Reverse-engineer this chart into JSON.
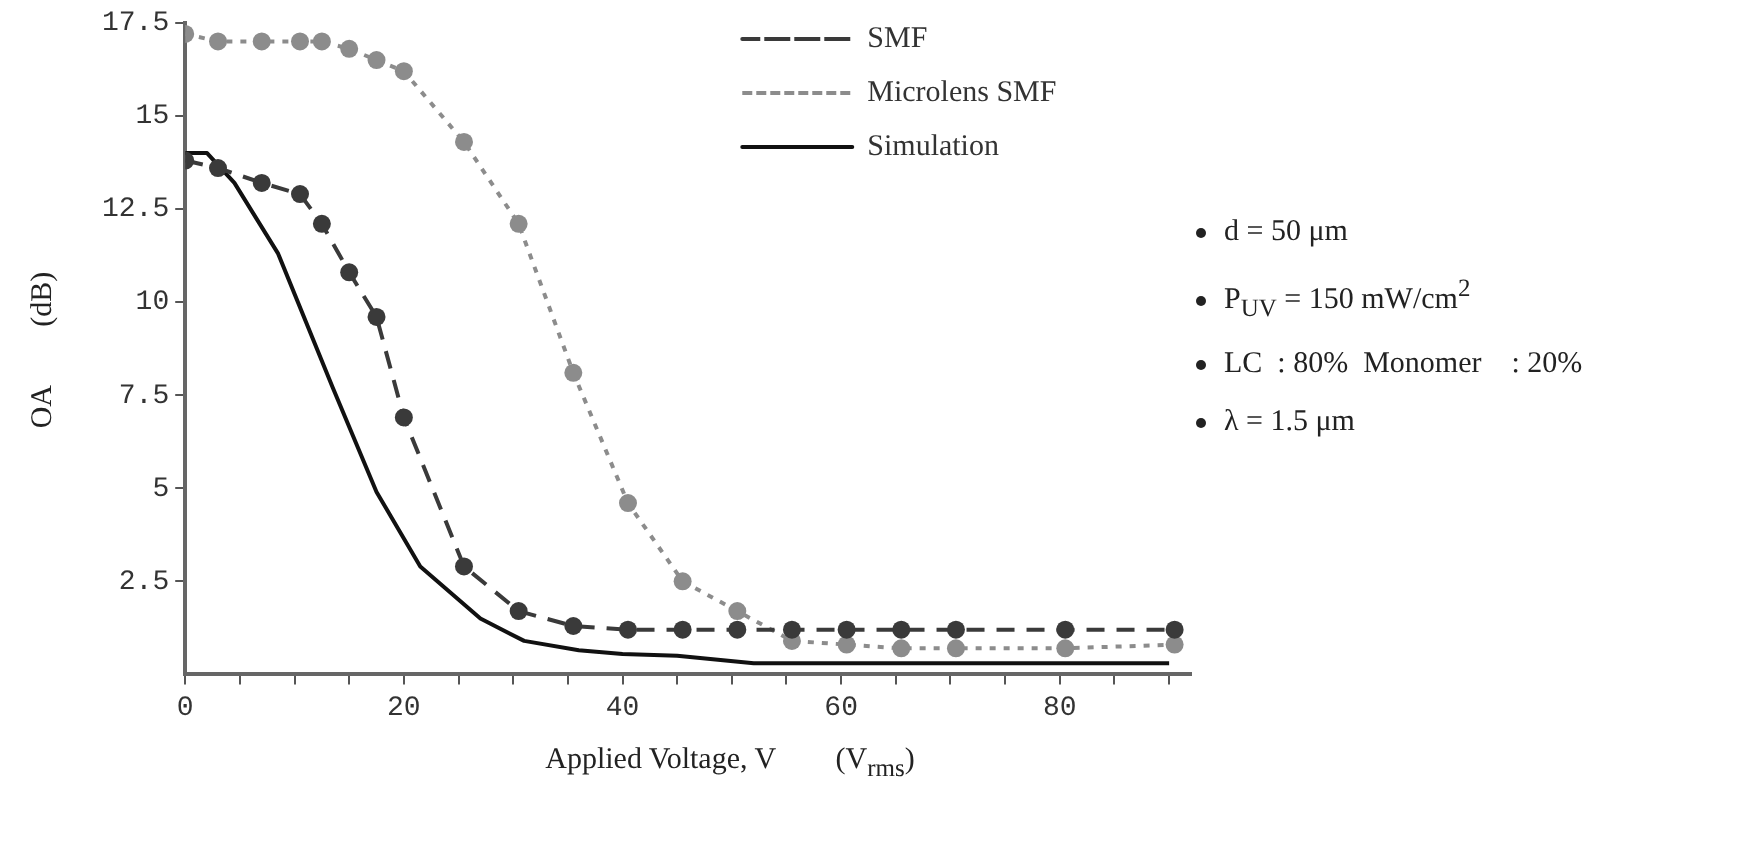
{
  "chart_data": {
    "type": "line",
    "xlabel": "Applied Voltage, V        (V$_{rms}$)",
    "ylabel": "OA        (dB)",
    "annotations": [
      "d = 50 μm",
      "P$_{UV}$ = 150 mW/cm$^{2}$",
      "LC  : 80%  Monomer    : 20%",
      "λ = 1.5 μm"
    ],
    "legend": "top right",
    "xlim": [
      0,
      92
    ],
    "xticks": [
      0,
      {
        "value": 5,
        "label": null
      },
      {
        "value": 10,
        "label": null
      },
      {
        "value": 15,
        "label": null
      },
      20,
      {
        "value": 25,
        "label": null
      },
      {
        "value": 30,
        "label": null
      },
      {
        "value": 35,
        "label": null
      },
      40,
      {
        "value": 45,
        "label": null
      },
      {
        "value": 50,
        "label": null
      },
      {
        "value": 55,
        "label": null
      },
      60,
      {
        "value": 65,
        "label": null
      },
      {
        "value": 70,
        "label": null
      },
      {
        "value": 75,
        "label": null
      },
      80,
      {
        "value": 85,
        "label": null
      },
      {
        "value": 90,
        "label": null
      }
    ],
    "ylim": [
      0,
      17.5
    ],
    "yticks": [
      2.5,
      5,
      7.5,
      10,
      12.5,
      15,
      17.5
    ],
    "series": [
      {
        "name": "SMF",
        "type": "line",
        "color": "#3a3a3a",
        "marker": "circle",
        "line_style": "dashed",
        "x": [
          0,
          3,
          7,
          10.5,
          12.5,
          15,
          17.5,
          20,
          25.5,
          30.5,
          35.5,
          40.5,
          45.5,
          50.5,
          55.5,
          60.5,
          65.5,
          70.5,
          80.5,
          90.5
        ],
        "values": [
          13.8,
          13.6,
          13.2,
          12.9,
          12.1,
          10.8,
          9.6,
          6.9,
          2.9,
          1.7,
          1.3,
          1.2,
          1.2,
          1.2,
          1.2,
          1.2,
          1.2,
          1.2,
          1.2,
          1.2
        ]
      },
      {
        "name": "Microlens SMF",
        "type": "line",
        "color": "#8c8c8c",
        "marker": "circle",
        "line_style": "dotted",
        "x": [
          0,
          3,
          7,
          10.5,
          12.5,
          15,
          17.5,
          20,
          25.5,
          30.5,
          35.5,
          40.5,
          45.5,
          50.5,
          55.5,
          60.5,
          65.5,
          70.5,
          80.5,
          90.5
        ],
        "values": [
          17.2,
          17.0,
          17.0,
          17.0,
          17.0,
          16.8,
          16.5,
          16.2,
          14.3,
          12.1,
          8.1,
          4.6,
          2.5,
          1.7,
          0.9,
          0.8,
          0.7,
          0.7,
          0.7,
          0.8
        ]
      },
      {
        "name": "Simulation",
        "type": "line",
        "color": "#111111",
        "marker": "none",
        "line_style": "solid",
        "x": [
          0,
          2,
          4.5,
          8.5,
          13.5,
          17.5,
          21.5,
          27,
          31,
          36,
          40,
          45,
          52,
          60,
          70,
          80,
          90
        ],
        "values": [
          14.0,
          14.0,
          13.2,
          11.3,
          7.7,
          4.9,
          2.9,
          1.5,
          0.9,
          0.65,
          0.55,
          0.5,
          0.3,
          0.3,
          0.3,
          0.3,
          0.3
        ]
      }
    ]
  }
}
